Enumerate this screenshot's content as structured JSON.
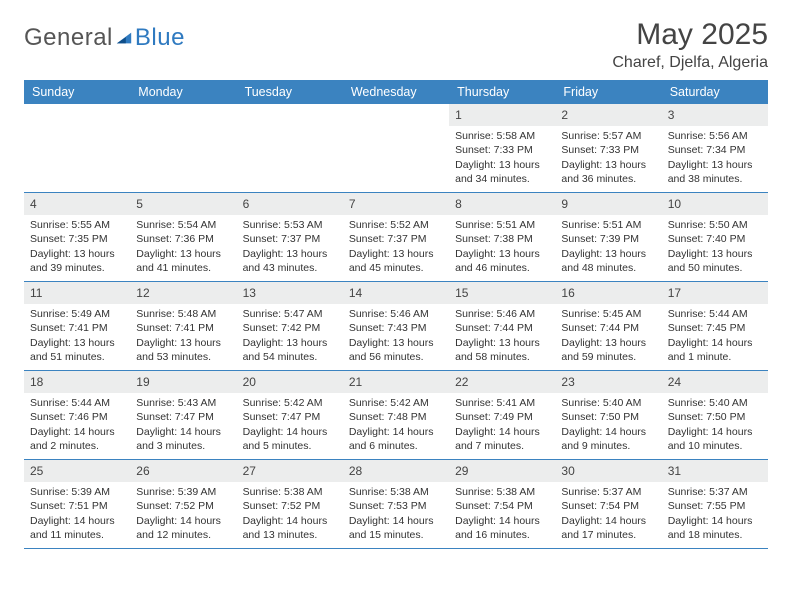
{
  "brand": {
    "name_a": "General",
    "name_b": "Blue"
  },
  "header": {
    "title": "May 2025",
    "location": "Charef, Djelfa, Algeria"
  },
  "colors": {
    "header_bar": "#3b83c0",
    "day_number_bg": "#eceded",
    "rule": "#3b83c0",
    "text": "#333333",
    "brand_gray": "#555555",
    "brand_blue": "#2f7ac0"
  },
  "weekdays": [
    "Sunday",
    "Monday",
    "Tuesday",
    "Wednesday",
    "Thursday",
    "Friday",
    "Saturday"
  ],
  "weeks": [
    [
      {
        "empty": true
      },
      {
        "empty": true
      },
      {
        "empty": true
      },
      {
        "empty": true
      },
      {
        "n": "1",
        "sr": "Sunrise: 5:58 AM",
        "ss": "Sunset: 7:33 PM",
        "dl": "Daylight: 13 hours and 34 minutes."
      },
      {
        "n": "2",
        "sr": "Sunrise: 5:57 AM",
        "ss": "Sunset: 7:33 PM",
        "dl": "Daylight: 13 hours and 36 minutes."
      },
      {
        "n": "3",
        "sr": "Sunrise: 5:56 AM",
        "ss": "Sunset: 7:34 PM",
        "dl": "Daylight: 13 hours and 38 minutes."
      }
    ],
    [
      {
        "n": "4",
        "sr": "Sunrise: 5:55 AM",
        "ss": "Sunset: 7:35 PM",
        "dl": "Daylight: 13 hours and 39 minutes."
      },
      {
        "n": "5",
        "sr": "Sunrise: 5:54 AM",
        "ss": "Sunset: 7:36 PM",
        "dl": "Daylight: 13 hours and 41 minutes."
      },
      {
        "n": "6",
        "sr": "Sunrise: 5:53 AM",
        "ss": "Sunset: 7:37 PM",
        "dl": "Daylight: 13 hours and 43 minutes."
      },
      {
        "n": "7",
        "sr": "Sunrise: 5:52 AM",
        "ss": "Sunset: 7:37 PM",
        "dl": "Daylight: 13 hours and 45 minutes."
      },
      {
        "n": "8",
        "sr": "Sunrise: 5:51 AM",
        "ss": "Sunset: 7:38 PM",
        "dl": "Daylight: 13 hours and 46 minutes."
      },
      {
        "n": "9",
        "sr": "Sunrise: 5:51 AM",
        "ss": "Sunset: 7:39 PM",
        "dl": "Daylight: 13 hours and 48 minutes."
      },
      {
        "n": "10",
        "sr": "Sunrise: 5:50 AM",
        "ss": "Sunset: 7:40 PM",
        "dl": "Daylight: 13 hours and 50 minutes."
      }
    ],
    [
      {
        "n": "11",
        "sr": "Sunrise: 5:49 AM",
        "ss": "Sunset: 7:41 PM",
        "dl": "Daylight: 13 hours and 51 minutes."
      },
      {
        "n": "12",
        "sr": "Sunrise: 5:48 AM",
        "ss": "Sunset: 7:41 PM",
        "dl": "Daylight: 13 hours and 53 minutes."
      },
      {
        "n": "13",
        "sr": "Sunrise: 5:47 AM",
        "ss": "Sunset: 7:42 PM",
        "dl": "Daylight: 13 hours and 54 minutes."
      },
      {
        "n": "14",
        "sr": "Sunrise: 5:46 AM",
        "ss": "Sunset: 7:43 PM",
        "dl": "Daylight: 13 hours and 56 minutes."
      },
      {
        "n": "15",
        "sr": "Sunrise: 5:46 AM",
        "ss": "Sunset: 7:44 PM",
        "dl": "Daylight: 13 hours and 58 minutes."
      },
      {
        "n": "16",
        "sr": "Sunrise: 5:45 AM",
        "ss": "Sunset: 7:44 PM",
        "dl": "Daylight: 13 hours and 59 minutes."
      },
      {
        "n": "17",
        "sr": "Sunrise: 5:44 AM",
        "ss": "Sunset: 7:45 PM",
        "dl": "Daylight: 14 hours and 1 minute."
      }
    ],
    [
      {
        "n": "18",
        "sr": "Sunrise: 5:44 AM",
        "ss": "Sunset: 7:46 PM",
        "dl": "Daylight: 14 hours and 2 minutes."
      },
      {
        "n": "19",
        "sr": "Sunrise: 5:43 AM",
        "ss": "Sunset: 7:47 PM",
        "dl": "Daylight: 14 hours and 3 minutes."
      },
      {
        "n": "20",
        "sr": "Sunrise: 5:42 AM",
        "ss": "Sunset: 7:47 PM",
        "dl": "Daylight: 14 hours and 5 minutes."
      },
      {
        "n": "21",
        "sr": "Sunrise: 5:42 AM",
        "ss": "Sunset: 7:48 PM",
        "dl": "Daylight: 14 hours and 6 minutes."
      },
      {
        "n": "22",
        "sr": "Sunrise: 5:41 AM",
        "ss": "Sunset: 7:49 PM",
        "dl": "Daylight: 14 hours and 7 minutes."
      },
      {
        "n": "23",
        "sr": "Sunrise: 5:40 AM",
        "ss": "Sunset: 7:50 PM",
        "dl": "Daylight: 14 hours and 9 minutes."
      },
      {
        "n": "24",
        "sr": "Sunrise: 5:40 AM",
        "ss": "Sunset: 7:50 PM",
        "dl": "Daylight: 14 hours and 10 minutes."
      }
    ],
    [
      {
        "n": "25",
        "sr": "Sunrise: 5:39 AM",
        "ss": "Sunset: 7:51 PM",
        "dl": "Daylight: 14 hours and 11 minutes."
      },
      {
        "n": "26",
        "sr": "Sunrise: 5:39 AM",
        "ss": "Sunset: 7:52 PM",
        "dl": "Daylight: 14 hours and 12 minutes."
      },
      {
        "n": "27",
        "sr": "Sunrise: 5:38 AM",
        "ss": "Sunset: 7:52 PM",
        "dl": "Daylight: 14 hours and 13 minutes."
      },
      {
        "n": "28",
        "sr": "Sunrise: 5:38 AM",
        "ss": "Sunset: 7:53 PM",
        "dl": "Daylight: 14 hours and 15 minutes."
      },
      {
        "n": "29",
        "sr": "Sunrise: 5:38 AM",
        "ss": "Sunset: 7:54 PM",
        "dl": "Daylight: 14 hours and 16 minutes."
      },
      {
        "n": "30",
        "sr": "Sunrise: 5:37 AM",
        "ss": "Sunset: 7:54 PM",
        "dl": "Daylight: 14 hours and 17 minutes."
      },
      {
        "n": "31",
        "sr": "Sunrise: 5:37 AM",
        "ss": "Sunset: 7:55 PM",
        "dl": "Daylight: 14 hours and 18 minutes."
      }
    ]
  ]
}
